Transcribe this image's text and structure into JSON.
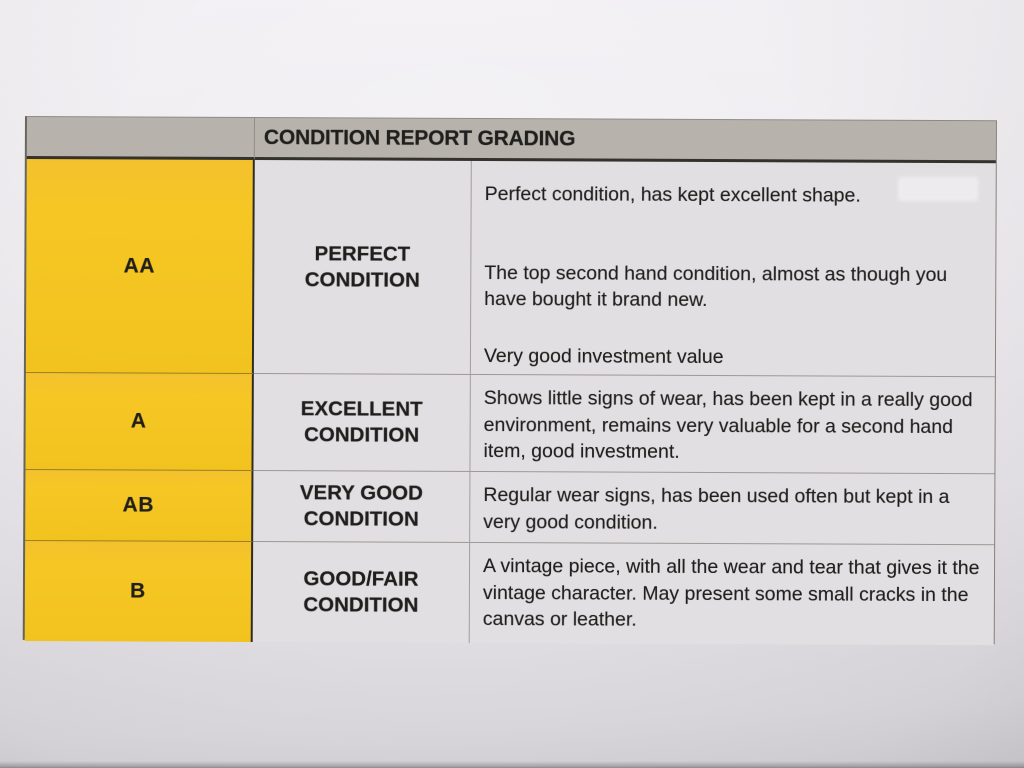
{
  "table": {
    "title": "CONDITION REPORT GRADING",
    "rows": [
      {
        "grade": "AA",
        "label": "PERFECT CONDITION",
        "paragraphs": [
          "Perfect condition, has kept excellent shape.",
          "The top second hand condition, almost as though you have bought it brand new.",
          "Very good investment value"
        ]
      },
      {
        "grade": "A",
        "label": "EXCELLENT CONDITION",
        "paragraphs": [
          "Shows little signs of wear, has been kept in a really good environment, remains very valuable for a second hand item, good investment."
        ]
      },
      {
        "grade": "AB",
        "label": "VERY GOOD CONDITION",
        "paragraphs": [
          "Regular wear signs, has been used often but kept in a very good condition."
        ]
      },
      {
        "grade": "B",
        "label": "GOOD/FAIR CONDITION",
        "paragraphs": [
          "A vintage piece, with all the wear and tear that gives it the vintage character. May present some small cracks in the canvas or leather."
        ]
      }
    ],
    "colors": {
      "grade_column": "#f6c724",
      "header_bg": "#b7b3ac",
      "cell_bg": "#e1dfe1",
      "text": "#201f1d"
    }
  }
}
